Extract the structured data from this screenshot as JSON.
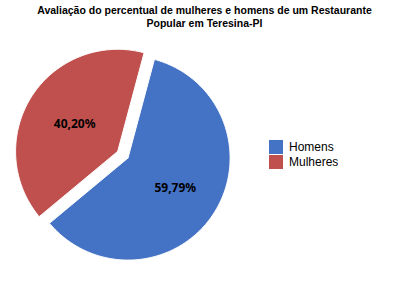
{
  "chart_data": {
    "type": "pie",
    "title": "Avaliação do percentual de mulheres e homens de um Restaurante\nPopular em Teresina-PI",
    "categories": [
      "Homens",
      "Mulheres"
    ],
    "values": [
      59.79,
      40.2
    ],
    "value_labels": [
      "59,79%",
      "40,20%"
    ],
    "colors": [
      "#4472C4",
      "#C0504D"
    ],
    "data_labels": true,
    "legend": "right"
  }
}
